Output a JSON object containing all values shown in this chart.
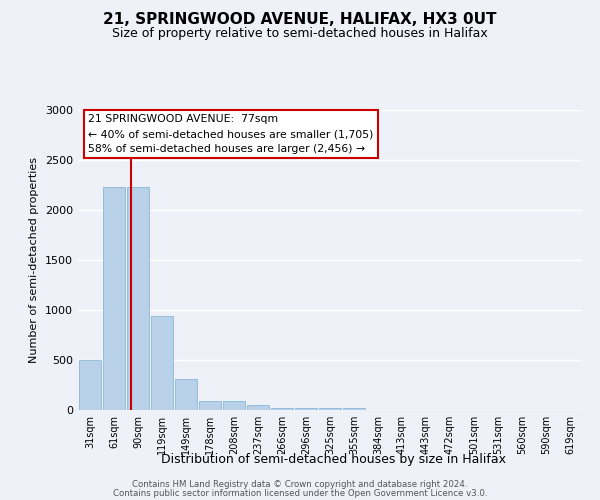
{
  "title": "21, SPRINGWOOD AVENUE, HALIFAX, HX3 0UT",
  "subtitle": "Size of property relative to semi-detached houses in Halifax",
  "xlabel": "Distribution of semi-detached houses by size in Halifax",
  "ylabel": "Number of semi-detached properties",
  "bar_labels": [
    "31sqm",
    "61sqm",
    "90sqm",
    "119sqm",
    "149sqm",
    "178sqm",
    "208sqm",
    "237sqm",
    "266sqm",
    "296sqm",
    "325sqm",
    "355sqm",
    "384sqm",
    "413sqm",
    "443sqm",
    "472sqm",
    "501sqm",
    "531sqm",
    "560sqm",
    "590sqm",
    "619sqm"
  ],
  "bar_values": [
    500,
    2230,
    2230,
    940,
    310,
    90,
    90,
    50,
    25,
    18,
    25,
    20,
    0,
    0,
    0,
    0,
    0,
    0,
    0,
    0,
    0
  ],
  "bar_color": "#b8d0e8",
  "bar_edge_color": "#7bafd4",
  "bg_color": "#eef2f8",
  "grid_color": "#ffffff",
  "property_line_x": 1.72,
  "annotation_title": "21 SPRINGWOOD AVENUE:  77sqm",
  "annotation_line1": "← 40% of semi-detached houses are smaller (1,705)",
  "annotation_line2": "58% of semi-detached houses are larger (2,456) →",
  "annotation_box_color": "#ffffff",
  "annotation_box_edge": "#cc0000",
  "red_line_color": "#cc0000",
  "ylim": [
    0,
    3000
  ],
  "yticks": [
    0,
    500,
    1000,
    1500,
    2000,
    2500,
    3000
  ],
  "title_fontsize": 11,
  "subtitle_fontsize": 9,
  "xlabel_fontsize": 9,
  "ylabel_fontsize": 8,
  "footer1": "Contains HM Land Registry data © Crown copyright and database right 2024.",
  "footer2": "Contains public sector information licensed under the Open Government Licence v3.0."
}
